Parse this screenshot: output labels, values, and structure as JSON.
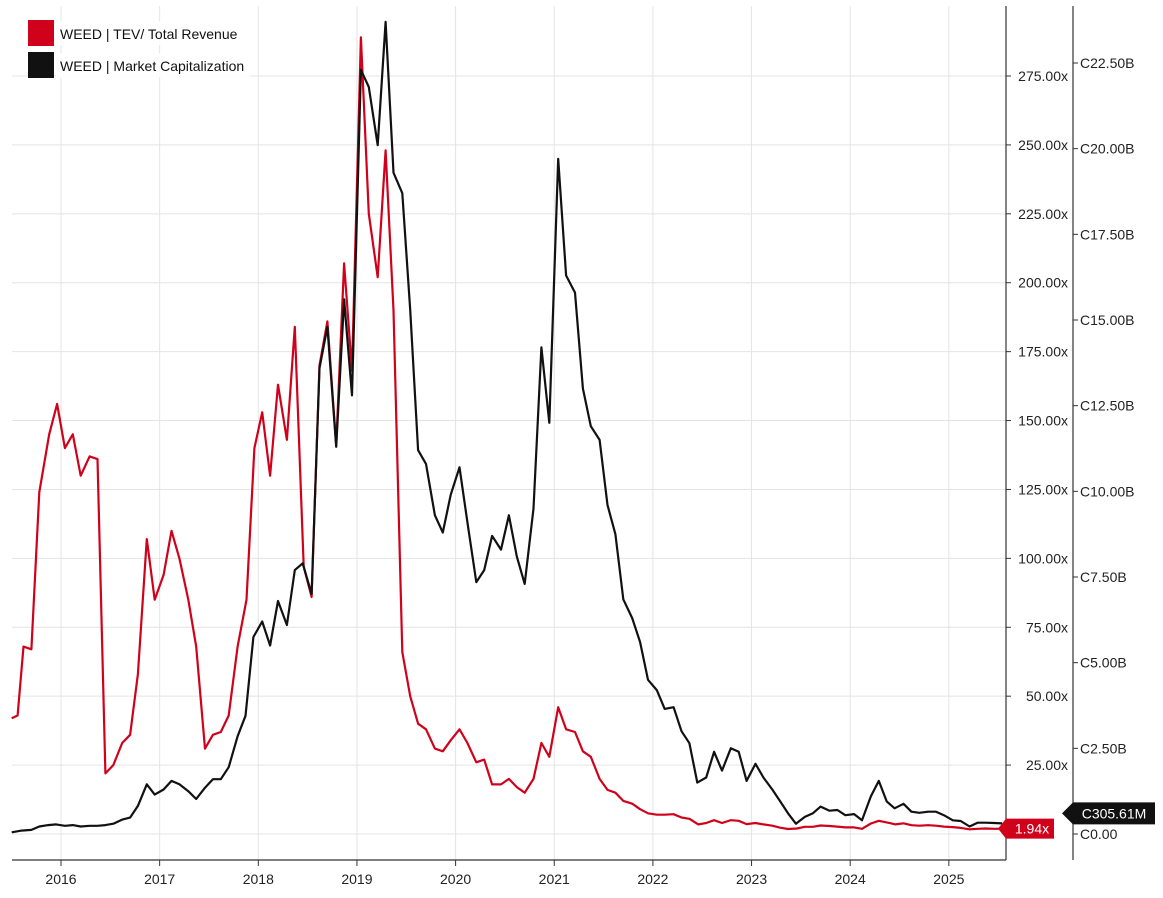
{
  "chart_data": {
    "type": "line",
    "title": "",
    "xlabel": "",
    "ylabel": "",
    "x_tick_labels": [
      "2016",
      "2017",
      "2018",
      "2019",
      "2020",
      "2021",
      "2022",
      "2023",
      "2024",
      "2025"
    ],
    "left_axis": {
      "series": "WEED | TEV/ Total Revenue",
      "ylim": [
        -12.5,
        302
      ],
      "tick_values": [
        0,
        25,
        50,
        75,
        100,
        125,
        150,
        175,
        200,
        225,
        250,
        275
      ],
      "tick_labels": [
        "",
        "25.00x",
        "50.00x",
        "75.00x",
        "100.00x",
        "125.00x",
        "150.00x",
        "175.00x",
        "200.00x",
        "225.00x",
        "250.00x",
        "275.00x"
      ]
    },
    "right_axis": {
      "series": "WEED | Market Capitalization",
      "ylim_billions": [
        -0.2,
        23.7
      ],
      "tick_values": [
        0,
        2.5,
        5,
        7.5,
        10,
        12.5,
        15,
        17.5,
        20,
        22.5
      ],
      "tick_labels": [
        "C0.00",
        "C2.50B",
        "C5.00B",
        "C7.50B",
        "C10.00B",
        "C12.50B",
        "C15.00B",
        "C17.50B",
        "C20.00B",
        "C22.50B"
      ]
    },
    "grid": true,
    "legend_position": "top-left",
    "series": [
      {
        "name": "WEED | TEV/ Total Revenue",
        "color": "#d0021b",
        "axis": "left",
        "latest_label": "1.94x",
        "points": [
          [
            2015.5,
            42
          ],
          [
            2015.56,
            43
          ],
          [
            2015.62,
            68
          ],
          [
            2015.7,
            67
          ],
          [
            2015.78,
            124
          ],
          [
            2015.88,
            145
          ],
          [
            2015.96,
            156
          ],
          [
            2016.04,
            140
          ],
          [
            2016.12,
            145
          ],
          [
            2016.2,
            130
          ],
          [
            2016.29,
            137
          ],
          [
            2016.37,
            136
          ],
          [
            2016.45,
            22
          ],
          [
            2016.53,
            25
          ],
          [
            2016.62,
            33
          ],
          [
            2016.7,
            36
          ],
          [
            2016.78,
            58
          ],
          [
            2016.87,
            107
          ],
          [
            2016.95,
            85
          ],
          [
            2017.04,
            94
          ],
          [
            2017.12,
            110
          ],
          [
            2017.2,
            100
          ],
          [
            2017.29,
            85
          ],
          [
            2017.37,
            68
          ],
          [
            2017.46,
            31
          ],
          [
            2017.54,
            36
          ],
          [
            2017.62,
            37
          ],
          [
            2017.7,
            43
          ],
          [
            2017.79,
            68
          ],
          [
            2017.88,
            85
          ],
          [
            2017.96,
            140
          ],
          [
            2018.04,
            153
          ],
          [
            2018.12,
            130
          ],
          [
            2018.2,
            163
          ],
          [
            2018.29,
            143
          ],
          [
            2018.37,
            184
          ],
          [
            2018.46,
            97
          ],
          [
            2018.54,
            86
          ],
          [
            2018.62,
            170
          ],
          [
            2018.7,
            186
          ],
          [
            2018.79,
            141
          ],
          [
            2018.87,
            207
          ],
          [
            2018.95,
            168
          ],
          [
            2019.04,
            289
          ],
          [
            2019.12,
            225
          ],
          [
            2019.21,
            202
          ],
          [
            2019.29,
            248
          ],
          [
            2019.37,
            190
          ],
          [
            2019.46,
            66
          ],
          [
            2019.54,
            50
          ],
          [
            2019.62,
            40
          ],
          [
            2019.7,
            38
          ],
          [
            2019.79,
            31
          ],
          [
            2019.87,
            30
          ],
          [
            2019.95,
            34
          ],
          [
            2020.04,
            38
          ],
          [
            2020.12,
            33
          ],
          [
            2020.21,
            26
          ],
          [
            2020.29,
            27
          ],
          [
            2020.37,
            18
          ],
          [
            2020.46,
            18
          ],
          [
            2020.54,
            20
          ],
          [
            2020.62,
            17
          ],
          [
            2020.7,
            15
          ],
          [
            2020.79,
            20
          ],
          [
            2020.87,
            33
          ],
          [
            2020.95,
            28
          ],
          [
            2021.04,
            46
          ],
          [
            2021.12,
            38
          ],
          [
            2021.21,
            37
          ],
          [
            2021.29,
            30
          ],
          [
            2021.37,
            28
          ],
          [
            2021.46,
            20
          ],
          [
            2021.54,
            16
          ],
          [
            2021.62,
            15
          ],
          [
            2021.7,
            12
          ],
          [
            2021.79,
            11
          ],
          [
            2021.87,
            9
          ],
          [
            2021.95,
            7.5
          ],
          [
            2022.04,
            7
          ],
          [
            2022.12,
            7
          ],
          [
            2022.21,
            7.2
          ],
          [
            2022.29,
            6
          ],
          [
            2022.37,
            5.5
          ],
          [
            2022.46,
            3.5
          ],
          [
            2022.54,
            4
          ],
          [
            2022.62,
            5
          ],
          [
            2022.7,
            4
          ],
          [
            2022.79,
            5
          ],
          [
            2022.87,
            4.8
          ],
          [
            2022.95,
            3.6
          ],
          [
            2023.04,
            4
          ],
          [
            2023.12,
            3.5
          ],
          [
            2023.21,
            3
          ],
          [
            2023.29,
            2.3
          ],
          [
            2023.37,
            1.8
          ],
          [
            2023.46,
            2
          ],
          [
            2023.54,
            2.6
          ],
          [
            2023.62,
            2.6
          ],
          [
            2023.7,
            3.1
          ],
          [
            2023.79,
            2.9
          ],
          [
            2023.87,
            2.7
          ],
          [
            2023.95,
            2.4
          ],
          [
            2024.04,
            2.4
          ],
          [
            2024.12,
            1.9
          ],
          [
            2024.21,
            3.8
          ],
          [
            2024.29,
            4.8
          ],
          [
            2024.37,
            4.2
          ],
          [
            2024.46,
            3.5
          ],
          [
            2024.54,
            3.9
          ],
          [
            2024.62,
            3.2
          ],
          [
            2024.7,
            3
          ],
          [
            2024.79,
            3.2
          ],
          [
            2024.87,
            3
          ],
          [
            2024.95,
            2.7
          ],
          [
            2025.04,
            2.5
          ],
          [
            2025.12,
            2.2
          ],
          [
            2025.21,
            1.7
          ],
          [
            2025.29,
            1.9
          ],
          [
            2025.37,
            2
          ],
          [
            2025.46,
            1.9
          ],
          [
            2025.54,
            1.94
          ]
        ]
      },
      {
        "name": "WEED | Market Capitalization",
        "color": "#111111",
        "axis": "right",
        "latest_label": "C305.61M",
        "points": [
          [
            2015.5,
            0.05
          ],
          [
            2015.6,
            0.1
          ],
          [
            2015.7,
            0.12
          ],
          [
            2015.78,
            0.22
          ],
          [
            2015.87,
            0.26
          ],
          [
            2015.95,
            0.28
          ],
          [
            2016.04,
            0.24
          ],
          [
            2016.12,
            0.26
          ],
          [
            2016.2,
            0.22
          ],
          [
            2016.29,
            0.24
          ],
          [
            2016.37,
            0.24
          ],
          [
            2016.45,
            0.26
          ],
          [
            2016.53,
            0.3
          ],
          [
            2016.62,
            0.42
          ],
          [
            2016.7,
            0.48
          ],
          [
            2016.78,
            0.82
          ],
          [
            2016.87,
            1.45
          ],
          [
            2016.95,
            1.15
          ],
          [
            2017.04,
            1.3
          ],
          [
            2017.12,
            1.55
          ],
          [
            2017.2,
            1.45
          ],
          [
            2017.29,
            1.25
          ],
          [
            2017.37,
            1.02
          ],
          [
            2017.46,
            1.35
          ],
          [
            2017.54,
            1.6
          ],
          [
            2017.62,
            1.6
          ],
          [
            2017.7,
            1.95
          ],
          [
            2017.79,
            2.85
          ],
          [
            2017.87,
            3.45
          ],
          [
            2017.95,
            5.75
          ],
          [
            2018.04,
            6.2
          ],
          [
            2018.12,
            5.5
          ],
          [
            2018.2,
            6.8
          ],
          [
            2018.29,
            6.1
          ],
          [
            2018.37,
            7.7
          ],
          [
            2018.45,
            7.9
          ],
          [
            2018.54,
            7
          ],
          [
            2018.62,
            13.6
          ],
          [
            2018.7,
            14.8
          ],
          [
            2018.79,
            11.3
          ],
          [
            2018.87,
            15.6
          ],
          [
            2018.95,
            12.8
          ],
          [
            2019.04,
            22.3
          ],
          [
            2019.12,
            21.8
          ],
          [
            2019.21,
            20.1
          ],
          [
            2019.29,
            23.7
          ],
          [
            2019.37,
            19.3
          ],
          [
            2019.46,
            18.7
          ],
          [
            2019.54,
            15.3
          ],
          [
            2019.62,
            11.2
          ],
          [
            2019.7,
            10.8
          ],
          [
            2019.79,
            9.3
          ],
          [
            2019.87,
            8.8
          ],
          [
            2019.95,
            9.9
          ],
          [
            2020.04,
            10.7
          ],
          [
            2020.12,
            9.1
          ],
          [
            2020.21,
            7.35
          ],
          [
            2020.29,
            7.7
          ],
          [
            2020.37,
            8.7
          ],
          [
            2020.46,
            8.3
          ],
          [
            2020.54,
            9.3
          ],
          [
            2020.62,
            8.1
          ],
          [
            2020.7,
            7.3
          ],
          [
            2020.79,
            9.5
          ],
          [
            2020.87,
            14.2
          ],
          [
            2020.95,
            12
          ],
          [
            2021.04,
            19.7
          ],
          [
            2021.12,
            16.3
          ],
          [
            2021.21,
            15.8
          ],
          [
            2021.29,
            13
          ],
          [
            2021.37,
            11.9
          ],
          [
            2021.46,
            11.5
          ],
          [
            2021.54,
            9.6
          ],
          [
            2021.62,
            8.75
          ],
          [
            2021.7,
            6.85
          ],
          [
            2021.79,
            6.3
          ],
          [
            2021.87,
            5.6
          ],
          [
            2021.95,
            4.5
          ],
          [
            2022.04,
            4.2
          ],
          [
            2022.12,
            3.65
          ],
          [
            2022.21,
            3.7
          ],
          [
            2022.29,
            3
          ],
          [
            2022.37,
            2.65
          ],
          [
            2022.45,
            1.5
          ],
          [
            2022.54,
            1.65
          ],
          [
            2022.62,
            2.4
          ],
          [
            2022.7,
            1.85
          ],
          [
            2022.79,
            2.5
          ],
          [
            2022.87,
            2.4
          ],
          [
            2022.95,
            1.55
          ],
          [
            2023.04,
            2.05
          ],
          [
            2023.12,
            1.65
          ],
          [
            2023.21,
            1.3
          ],
          [
            2023.29,
            0.95
          ],
          [
            2023.37,
            0.6
          ],
          [
            2023.45,
            0.3
          ],
          [
            2023.54,
            0.5
          ],
          [
            2023.62,
            0.6
          ],
          [
            2023.7,
            0.8
          ],
          [
            2023.79,
            0.68
          ],
          [
            2023.87,
            0.7
          ],
          [
            2023.95,
            0.55
          ],
          [
            2024.04,
            0.58
          ],
          [
            2024.12,
            0.4
          ],
          [
            2024.21,
            1.1
          ],
          [
            2024.29,
            1.55
          ],
          [
            2024.37,
            0.95
          ],
          [
            2024.45,
            0.75
          ],
          [
            2024.54,
            0.88
          ],
          [
            2024.62,
            0.65
          ],
          [
            2024.7,
            0.62
          ],
          [
            2024.79,
            0.65
          ],
          [
            2024.87,
            0.65
          ],
          [
            2024.95,
            0.55
          ],
          [
            2025.04,
            0.4
          ],
          [
            2025.12,
            0.38
          ],
          [
            2025.21,
            0.22
          ],
          [
            2025.29,
            0.33
          ],
          [
            2025.37,
            0.33
          ],
          [
            2025.46,
            0.32
          ],
          [
            2025.54,
            0.31
          ]
        ]
      }
    ]
  },
  "colors": {
    "tev_series": "#d0021b",
    "market_cap_series": "#111111",
    "grid": "#e4e4e4",
    "badge_text": "#ffffff"
  }
}
